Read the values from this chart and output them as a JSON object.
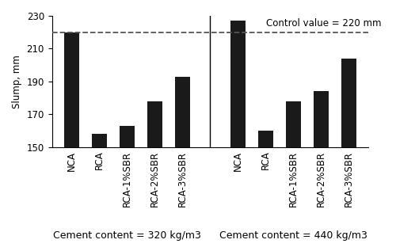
{
  "group1_labels": [
    "NCA",
    "RCA",
    "RCA-1%SBR",
    "RCA-2%SBR",
    "RCA-3%SBR"
  ],
  "group2_labels": [
    "NCA",
    "RCA",
    "RCA-1%SBR",
    "RCA-2%SBR",
    "RCA-3%SBR"
  ],
  "group1_values": [
    220,
    158,
    163,
    178,
    193
  ],
  "group2_values": [
    227,
    160,
    178,
    184,
    204
  ],
  "group1_label": "Cement content = 320 kg/m3",
  "group2_label": "Cement content = 440 kg/m3",
  "ylabel": "Slump, mm",
  "control_value": 220,
  "control_label": "Control value = 220 mm",
  "ylim": [
    150,
    230
  ],
  "yticks": [
    150,
    170,
    190,
    210,
    230
  ],
  "bar_color": "#1a1a1a",
  "bar_width": 0.55,
  "dashed_line_color": "#555555",
  "background_color": "#ffffff",
  "font_size_ticks": 8.5,
  "font_size_labels": 8.5,
  "font_size_annotation": 8.5,
  "font_size_group_label": 9
}
